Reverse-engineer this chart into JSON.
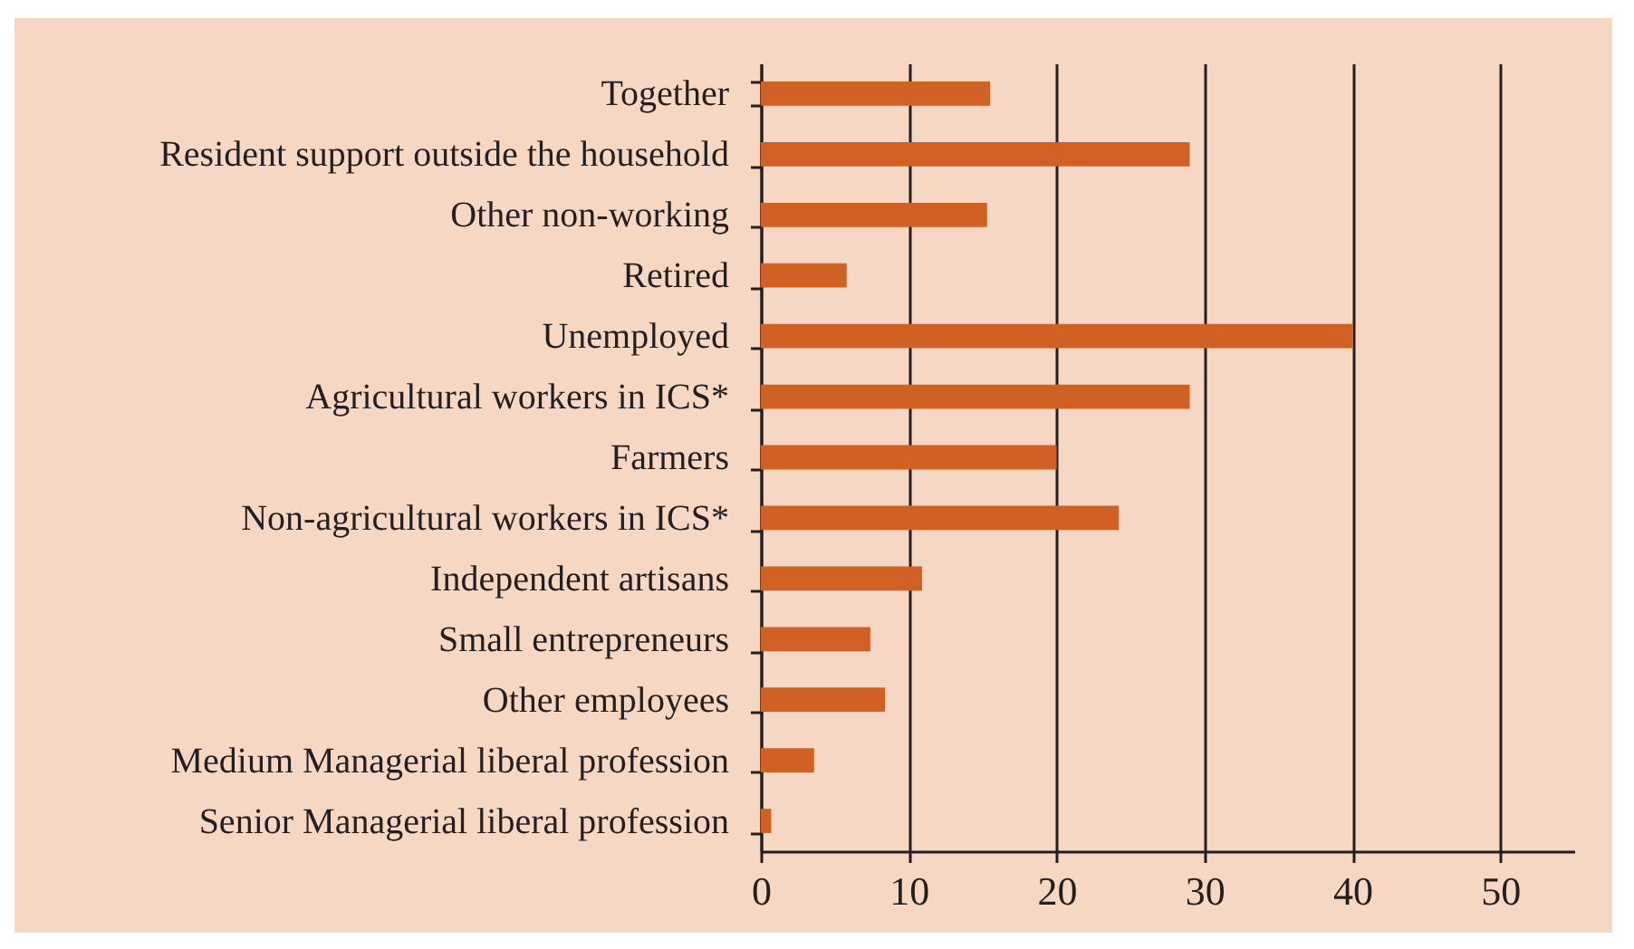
{
  "chart_data": {
    "type": "bar",
    "orientation": "horizontal",
    "categories": [
      "Together",
      "Resident support outside the household",
      "Other non-working",
      "Retired",
      "Unemployed",
      "Agricultural workers in ICS*",
      "Farmers",
      "Non-agricultural workers in ICS*",
      "Independent artisans",
      "Small entrepreneurs",
      "Other employees",
      "Medium Managerial liberal profession",
      "Senior Managerial liberal profession"
    ],
    "values": [
      15.5,
      29.0,
      15.3,
      5.8,
      40.0,
      29.0,
      20.0,
      24.2,
      10.9,
      7.4,
      8.4,
      3.6,
      0.7
    ],
    "color": "#d06024",
    "xlim": [
      0,
      55
    ],
    "xticks": [
      0,
      10,
      20,
      30,
      40,
      50
    ],
    "grid": "x"
  }
}
